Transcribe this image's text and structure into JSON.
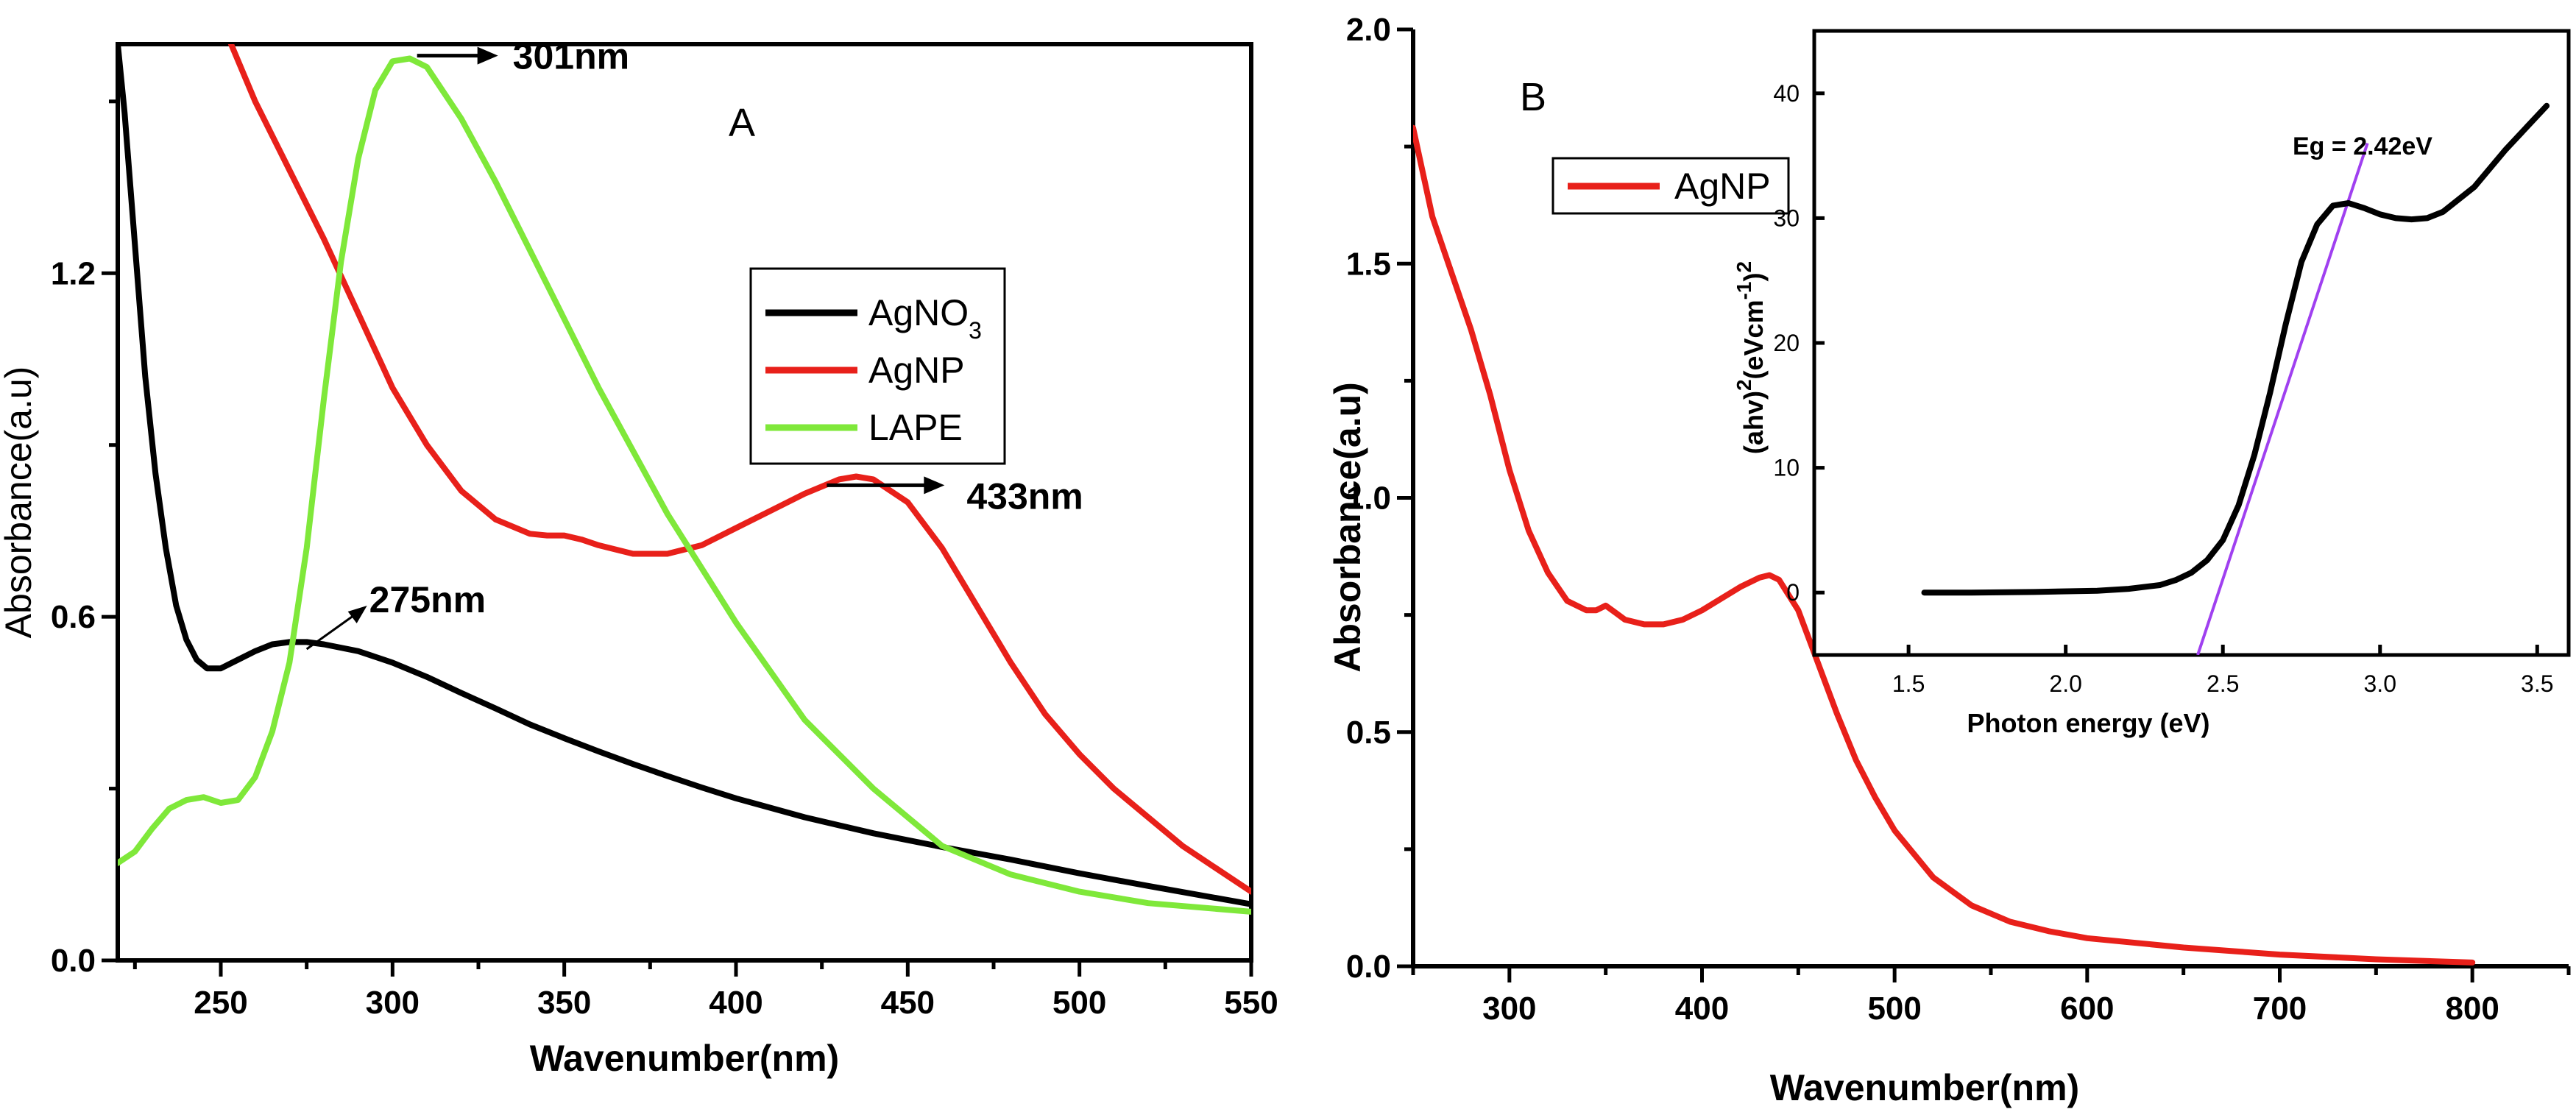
{
  "chart_data": [
    {
      "panel": "A",
      "type": "line",
      "xlabel": "Wavenumber(nm)",
      "ylabel": "Absorbance(a.u)",
      "xlim": [
        220,
        550
      ],
      "ylim": [
        0,
        1.6
      ],
      "xticks": [
        250,
        300,
        350,
        400,
        450,
        500,
        550
      ],
      "yticks": [
        0.0,
        0.6,
        1.2
      ],
      "ytick_labels": [
        "0.0",
        "0.6",
        "1.2"
      ],
      "legend": {
        "position": "upper-right",
        "entries": [
          {
            "label": "AgNO",
            "subscript": "3",
            "color": "#000000"
          },
          {
            "label": "AgNP",
            "color": "#e8201a"
          },
          {
            "label": "LAPE",
            "color": "#7fe83a"
          }
        ]
      },
      "annotations": [
        {
          "text": "301nm",
          "x": 305,
          "y": 1.58
        },
        {
          "text": "433nm",
          "x": 435,
          "y": 0.84
        },
        {
          "text": "275nm",
          "x": 275,
          "y": 0.55
        }
      ],
      "series": [
        {
          "name": "AgNO3",
          "color": "#000000",
          "x": [
            220,
            222,
            225,
            228,
            231,
            234,
            237,
            240,
            243,
            246,
            250,
            255,
            260,
            265,
            270,
            275,
            280,
            290,
            300,
            310,
            320,
            330,
            340,
            350,
            360,
            370,
            380,
            390,
            400,
            420,
            440,
            460,
            480,
            500,
            520,
            550
          ],
          "y": [
            1.6,
            1.48,
            1.25,
            1.02,
            0.85,
            0.72,
            0.62,
            0.56,
            0.525,
            0.51,
            0.51,
            0.525,
            0.54,
            0.552,
            0.556,
            0.556,
            0.552,
            0.54,
            0.52,
            0.495,
            0.467,
            0.44,
            0.412,
            0.388,
            0.365,
            0.343,
            0.322,
            0.302,
            0.283,
            0.25,
            0.222,
            0.198,
            0.176,
            0.152,
            0.13,
            0.098
          ]
        },
        {
          "name": "AgNP",
          "color": "#e8201a",
          "x": [
            253,
            260,
            270,
            280,
            290,
            300,
            310,
            320,
            330,
            340,
            345,
            350,
            355,
            360,
            370,
            380,
            390,
            400,
            410,
            420,
            430,
            435,
            440,
            450,
            460,
            470,
            480,
            490,
            500,
            510,
            520,
            530,
            540,
            550
          ],
          "y": [
            1.6,
            1.5,
            1.38,
            1.26,
            1.13,
            1.0,
            0.9,
            0.82,
            0.77,
            0.745,
            0.742,
            0.742,
            0.735,
            0.725,
            0.71,
            0.71,
            0.725,
            0.755,
            0.785,
            0.815,
            0.84,
            0.845,
            0.84,
            0.8,
            0.72,
            0.62,
            0.52,
            0.43,
            0.36,
            0.3,
            0.25,
            0.2,
            0.16,
            0.12
          ]
        },
        {
          "name": "LAPE",
          "color": "#7fe83a",
          "x": [
            220,
            225,
            230,
            235,
            240,
            245,
            250,
            255,
            260,
            265,
            270,
            275,
            280,
            285,
            290,
            295,
            300,
            305,
            310,
            320,
            330,
            340,
            350,
            360,
            380,
            400,
            420,
            440,
            460,
            480,
            500,
            520,
            550
          ],
          "y": [
            0.17,
            0.19,
            0.23,
            0.265,
            0.28,
            0.285,
            0.275,
            0.28,
            0.32,
            0.4,
            0.52,
            0.72,
            0.98,
            1.22,
            1.4,
            1.52,
            1.57,
            1.575,
            1.56,
            1.47,
            1.36,
            1.24,
            1.12,
            1.0,
            0.78,
            0.59,
            0.42,
            0.3,
            0.2,
            0.15,
            0.12,
            0.1,
            0.085
          ]
        }
      ]
    },
    {
      "panel": "B",
      "type": "line",
      "xlabel": "Wavenumber(nm)",
      "ylabel": "Absorbance(a.u)",
      "xlim": [
        250,
        850
      ],
      "ylim": [
        0,
        2.0
      ],
      "xticks": [
        300,
        400,
        500,
        600,
        700,
        800
      ],
      "yticks": [
        0.0,
        0.5,
        1.0,
        1.5,
        2.0
      ],
      "ytick_labels": [
        "0.0",
        "0.5",
        "1.0",
        "1.5",
        "2.0"
      ],
      "legend": {
        "position": "upper-left",
        "entries": [
          {
            "label": "AgNP",
            "color": "#e8201a"
          }
        ]
      },
      "series": [
        {
          "name": "AgNP",
          "color": "#e8201a",
          "x": [
            250,
            260,
            270,
            280,
            290,
            300,
            310,
            320,
            330,
            340,
            345,
            350,
            355,
            360,
            370,
            380,
            390,
            400,
            410,
            420,
            430,
            435,
            440,
            450,
            460,
            470,
            480,
            490,
            500,
            520,
            540,
            560,
            580,
            600,
            650,
            700,
            750,
            800
          ],
          "y": [
            1.79,
            1.6,
            1.48,
            1.36,
            1.22,
            1.06,
            0.93,
            0.84,
            0.78,
            0.76,
            0.76,
            0.77,
            0.755,
            0.74,
            0.73,
            0.73,
            0.74,
            0.76,
            0.785,
            0.81,
            0.83,
            0.835,
            0.825,
            0.76,
            0.65,
            0.54,
            0.44,
            0.36,
            0.29,
            0.19,
            0.13,
            0.095,
            0.075,
            0.06,
            0.04,
            0.025,
            0.015,
            0.008
          ]
        }
      ],
      "inset": {
        "type": "line",
        "xlabel": "Photon energy (eV)",
        "ylabel_parts": [
          "(ahv)",
          "2",
          "(eVcm",
          "-1",
          ")",
          "2"
        ],
        "xlim": [
          1.2,
          3.6
        ],
        "ylim": [
          -5,
          45
        ],
        "xticks": [
          1.5,
          2.0,
          2.5,
          3.0,
          3.5
        ],
        "xtick_labels": [
          "1.5",
          "2.0",
          "2.5",
          "3.0",
          "3.5"
        ],
        "yticks": [
          0,
          10,
          20,
          30,
          40
        ],
        "ytick_labels": [
          "0",
          "10",
          "20",
          "30",
          "40"
        ],
        "annotation": "Eg = 2.42eV",
        "fit_line": {
          "color": "#a040f0",
          "x": [
            2.42,
            2.96
          ],
          "y": [
            -5,
            36
          ]
        },
        "series": [
          {
            "name": "(ahv)^2",
            "color": "#000000",
            "x": [
              1.55,
              1.7,
              1.9,
              2.1,
              2.2,
              2.3,
              2.35,
              2.4,
              2.45,
              2.5,
              2.55,
              2.6,
              2.65,
              2.7,
              2.75,
              2.8,
              2.85,
              2.9,
              2.95,
              3.0,
              3.05,
              3.1,
              3.15,
              3.2,
              3.3,
              3.4,
              3.53
            ],
            "y": [
              0,
              0,
              0.05,
              0.15,
              0.3,
              0.6,
              1.0,
              1.6,
              2.6,
              4.2,
              7.0,
              11.0,
              16.0,
              21.5,
              26.5,
              29.5,
              31.0,
              31.2,
              30.8,
              30.3,
              30.0,
              29.9,
              30.0,
              30.5,
              32.5,
              35.5,
              39.0
            ]
          }
        ]
      }
    }
  ]
}
